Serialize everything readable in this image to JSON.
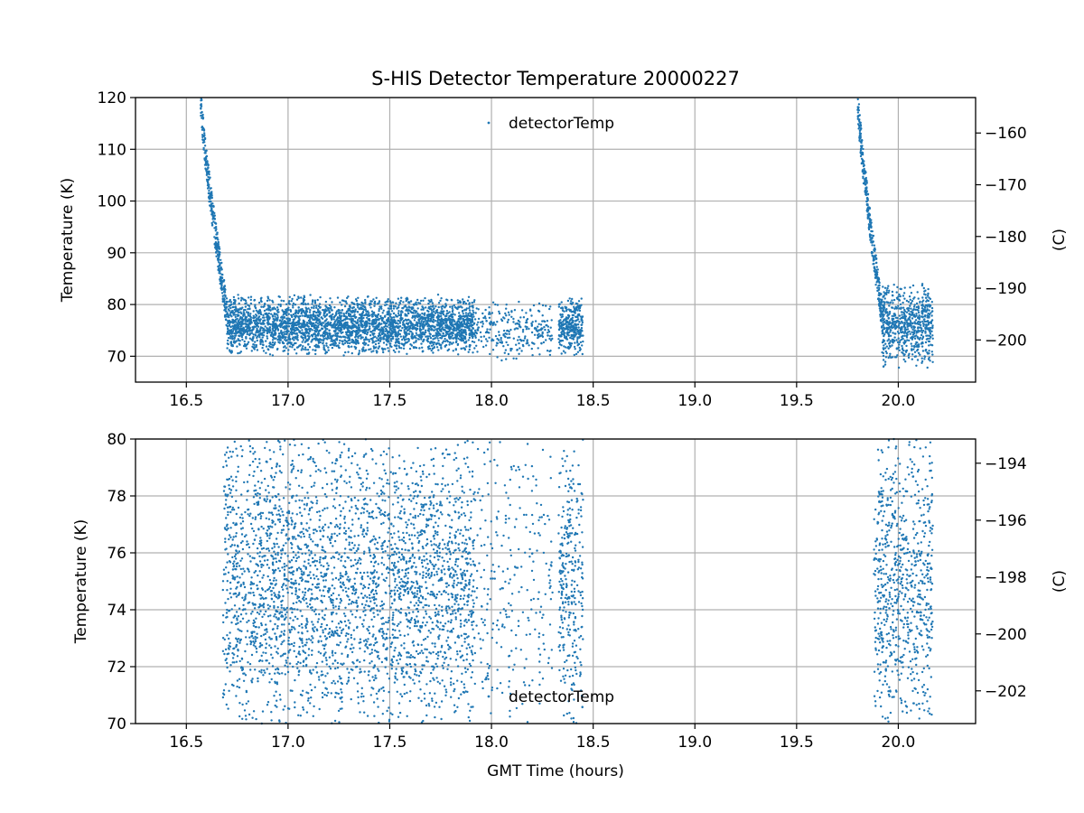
{
  "chart_data": [
    {
      "type": "scatter",
      "title": "S-HIS Detector Temperature 20000227",
      "xlabel": "",
      "ylabel": "Temperature (K)",
      "ylabel_right": "(C)",
      "xlim": [
        16.25,
        20.38
      ],
      "ylim": [
        65,
        120
      ],
      "ylim_right": [
        -208.15,
        -153.15
      ],
      "x_ticks": [
        16.5,
        17.0,
        17.5,
        18.0,
        18.5,
        19.0,
        19.5,
        20.0
      ],
      "x_tick_labels": [
        "16.5",
        "17.0",
        "17.5",
        "18.0",
        "18.5",
        "19.0",
        "19.5",
        "20.0"
      ],
      "y_ticks": [
        70,
        80,
        90,
        100,
        110,
        120
      ],
      "y_tick_labels": [
        "70",
        "80",
        "90",
        "100",
        "110",
        "120"
      ],
      "y_right_ticks": [
        -200,
        -190,
        -180,
        -170,
        -160
      ],
      "y_right_tick_labels": [
        "−200",
        "−190",
        "−180",
        "−170",
        "−160"
      ],
      "grid": true,
      "legend": "top-center",
      "series": [
        {
          "name": "detectorTemp",
          "color": "#1f77b4",
          "segments": [
            {
              "x_start": 16.57,
              "x_end": 16.7,
              "y_start": 120,
              "y_end": 78,
              "spread": 3,
              "note_shape": "cooldown"
            },
            {
              "x_start": 16.7,
              "x_end": 17.92,
              "y_center": 76,
              "spread": 5
            },
            {
              "x_start": 17.92,
              "x_end": 18.3,
              "y_center": 75,
              "spread": 5,
              "sparse": true
            },
            {
              "x_start": 18.33,
              "x_end": 18.45,
              "y_center": 76,
              "spread": 5
            },
            {
              "x_start": 19.8,
              "x_end": 19.92,
              "y_start": 120,
              "y_end": 78,
              "spread": 3,
              "note_shape": "cooldown"
            },
            {
              "x_start": 19.92,
              "x_end": 20.17,
              "y_center": 76,
              "spread": 7
            }
          ]
        }
      ]
    },
    {
      "type": "scatter",
      "title": "",
      "xlabel": "GMT Time (hours)",
      "ylabel": "Temperature (K)",
      "ylabel_right": "(C)",
      "xlim": [
        16.25,
        20.38
      ],
      "ylim": [
        70,
        80
      ],
      "ylim_right": [
        -203.15,
        -193.15
      ],
      "x_ticks": [
        16.5,
        17.0,
        17.5,
        18.0,
        18.5,
        19.0,
        19.5,
        20.0
      ],
      "x_tick_labels": [
        "16.5",
        "17.0",
        "17.5",
        "18.0",
        "18.5",
        "19.0",
        "19.5",
        "20.0"
      ],
      "y_ticks": [
        70,
        72,
        74,
        76,
        78,
        80
      ],
      "y_tick_labels": [
        "70",
        "72",
        "74",
        "76",
        "78",
        "80"
      ],
      "y_right_ticks": [
        -202,
        -200,
        -198,
        -196,
        -194
      ],
      "y_right_tick_labels": [
        "−202",
        "−200",
        "−198",
        "−196",
        "−194"
      ],
      "grid": true,
      "legend": "bottom-center",
      "series": [
        {
          "name": "detectorTemp",
          "color": "#1f77b4",
          "segments": [
            {
              "x_start": 16.68,
              "x_end": 17.92,
              "y_center": 75,
              "spread": 5
            },
            {
              "x_start": 17.92,
              "x_end": 18.3,
              "y_center": 75,
              "spread": 5,
              "sparse": true
            },
            {
              "x_start": 18.33,
              "x_end": 18.45,
              "y_center": 75,
              "spread": 5
            },
            {
              "x_start": 19.88,
              "x_end": 20.17,
              "y_center": 75,
              "spread": 5
            }
          ]
        }
      ]
    }
  ]
}
